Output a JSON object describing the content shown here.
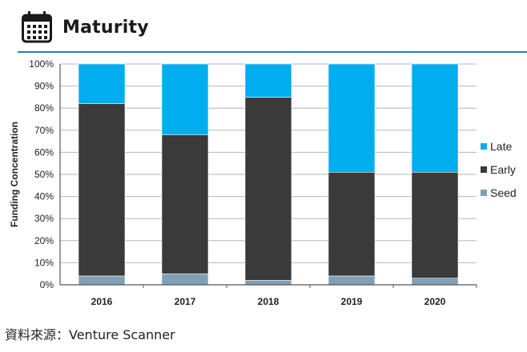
{
  "header": {
    "title": "Maturity",
    "icon": "calendar-icon",
    "rule_color": "#2b7bbf"
  },
  "chart_data": {
    "type": "bar",
    "stacked": true,
    "categories": [
      "2016",
      "2017",
      "2018",
      "2019",
      "2020"
    ],
    "series": [
      {
        "name": "Seed",
        "color": "#7f9fb6",
        "values": [
          4,
          5,
          2,
          4,
          3
        ]
      },
      {
        "name": "Early",
        "color": "#3a3a3a",
        "values": [
          78,
          63,
          83,
          47,
          48
        ]
      },
      {
        "name": "Late",
        "color": "#00adef",
        "values": [
          18,
          32,
          15,
          49,
          49
        ]
      }
    ],
    "ylabel": "Funding Concentration",
    "xlabel": "",
    "ylim": [
      0,
      100
    ],
    "yticks": [
      "0%",
      "10%",
      "20%",
      "30%",
      "40%",
      "50%",
      "60%",
      "70%",
      "80%",
      "90%",
      "100%"
    ],
    "legend_placement": "right",
    "legend_order": [
      "Late",
      "Early",
      "Seed"
    ],
    "grid": true
  },
  "footer": {
    "source": "資料來源：Venture Scanner"
  }
}
